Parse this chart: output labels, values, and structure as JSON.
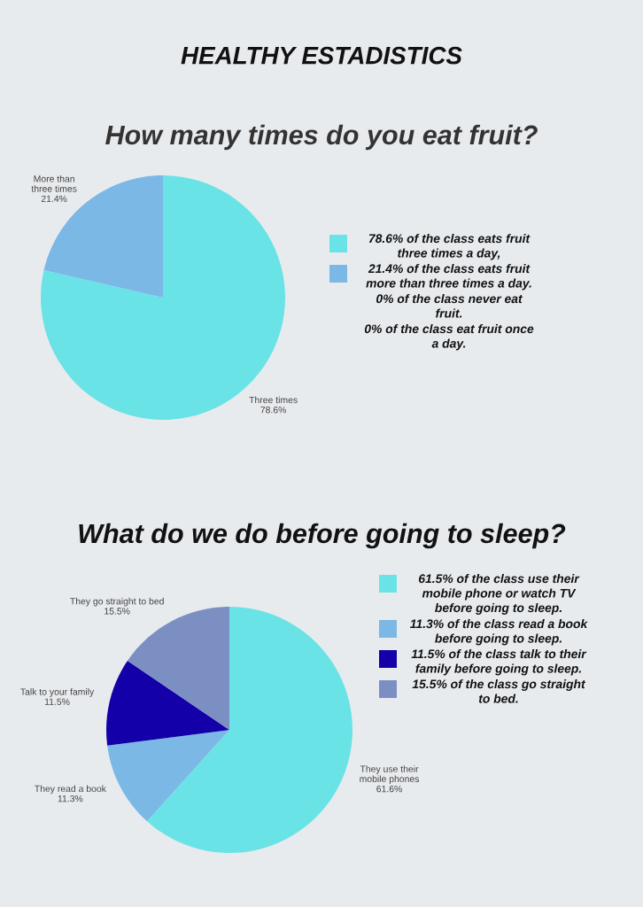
{
  "chart_data": [
    {
      "type": "pie",
      "title": "HEALTHY ESTADISTICS",
      "subtitle": "How many times do you eat fruit?",
      "categories": [
        "Three times",
        "More than\nthree times"
      ],
      "values": [
        78.6,
        21.4
      ],
      "value_labels": [
        "78.6%",
        "21.4%"
      ],
      "colors": [
        "#6ae3e6",
        "#7bb8e6"
      ],
      "annotations": [
        "78.6% of the class eats fruit\nthree times a day,",
        "21.4% of the class eats fruit\nmore than three times a day.",
        "0% of the class never eat\nfruit.",
        "0% of the class eat fruit once\na day."
      ]
    },
    {
      "type": "pie",
      "title": "What do we do before going to sleep?",
      "categories": [
        "They use their\nmobile phones",
        "They read a book",
        "Talk to your family",
        "They go straight to bed"
      ],
      "values": [
        61.6,
        11.3,
        11.5,
        15.5
      ],
      "value_labels": [
        "61.6%",
        "11.3%",
        "11.5%",
        "15.5%"
      ],
      "colors": [
        "#6ae3e6",
        "#7bb8e6",
        "#1400a8",
        "#7b8fc2"
      ],
      "annotations": [
        "61.5% of the class use their\nmobile phone or watch TV\nbefore going to sleep.",
        "11.3% of the class read a book\nbefore going to sleep.",
        "11.5% of the class talk to their\nfamily before going to sleep.",
        "15.5% of the class go straight\nto bed."
      ]
    }
  ]
}
